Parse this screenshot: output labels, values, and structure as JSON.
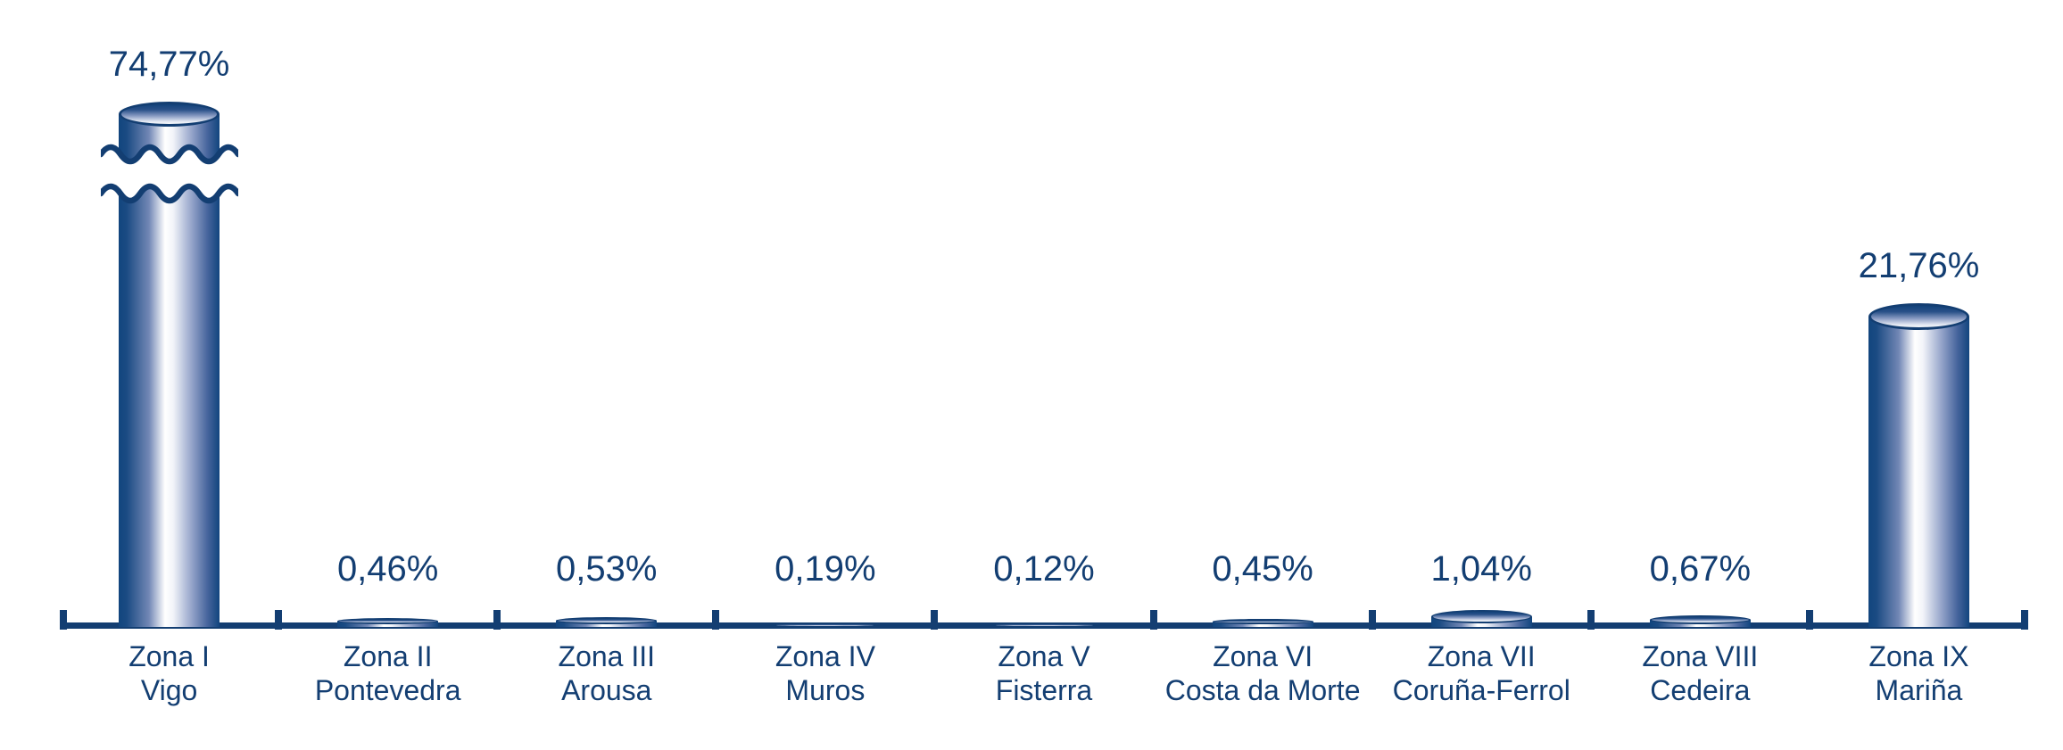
{
  "chart_data": {
    "type": "bar",
    "style": "3d-cylinder",
    "title": "",
    "xlabel": "",
    "ylabel": "",
    "unit": "%",
    "grid": false,
    "legend": "none",
    "decimal_separator": ",",
    "categories": [
      {
        "zone": "Zona I",
        "name": "Vigo"
      },
      {
        "zone": "Zona II",
        "name": "Pontevedra"
      },
      {
        "zone": "Zona III",
        "name": "Arousa"
      },
      {
        "zone": "Zona IV",
        "name": "Muros"
      },
      {
        "zone": "Zona V",
        "name": "Fisterra"
      },
      {
        "zone": "Zona VI",
        "name": "Costa da Morte"
      },
      {
        "zone": "Zona VII",
        "name": "Coruña-Ferrol"
      },
      {
        "zone": "Zona VIII",
        "name": "Cedeira"
      },
      {
        "zone": "Zona IX",
        "name": "Mariña"
      }
    ],
    "values": [
      74.77,
      0.46,
      0.53,
      0.19,
      0.12,
      0.45,
      1.04,
      0.67,
      21.76
    ],
    "value_labels": [
      "74,77%",
      "0,46%",
      "0,53%",
      "0,19%",
      "0,12%",
      "0,45%",
      "1,04%",
      "0,67%",
      "21,76%"
    ],
    "broken_bar_index": 0,
    "axis_break": {
      "category": "Zona I",
      "type": "wavy-break"
    },
    "colors": {
      "navy": "#133E72",
      "bar_dark": "#11457E",
      "bar_light": "#FFFFFF"
    }
  }
}
